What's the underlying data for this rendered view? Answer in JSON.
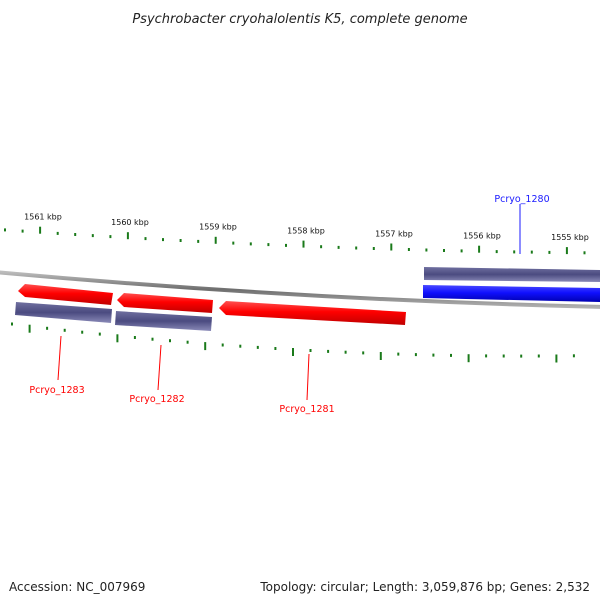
{
  "title": "Psychrobacter cryohalolentis K5, complete genome",
  "footer": {
    "accession": "Accession: NC_007969",
    "summary": "Topology: circular; Length: 3,059,876 bp; Genes: 2,532"
  },
  "colors": {
    "forward_gene": "#1a1aff",
    "reverse_gene": "#ff0000",
    "cds": "#55558a",
    "tick": "#1a7a1a",
    "backbone": "#888888"
  },
  "ticks": [
    {
      "label": "1561 kbp"
    },
    {
      "label": "1560 kbp"
    },
    {
      "label": "1559 kbp"
    },
    {
      "label": "1558 kbp"
    },
    {
      "label": "1557 kbp"
    },
    {
      "label": "1556 kbp"
    },
    {
      "label": "1555 kbp"
    }
  ],
  "genes": [
    {
      "name": "Pcryo_1280",
      "strand": "forward"
    },
    {
      "name": "Pcryo_1281",
      "strand": "reverse"
    },
    {
      "name": "Pcryo_1282",
      "strand": "reverse"
    },
    {
      "name": "Pcryo_1283",
      "strand": "reverse"
    }
  ]
}
